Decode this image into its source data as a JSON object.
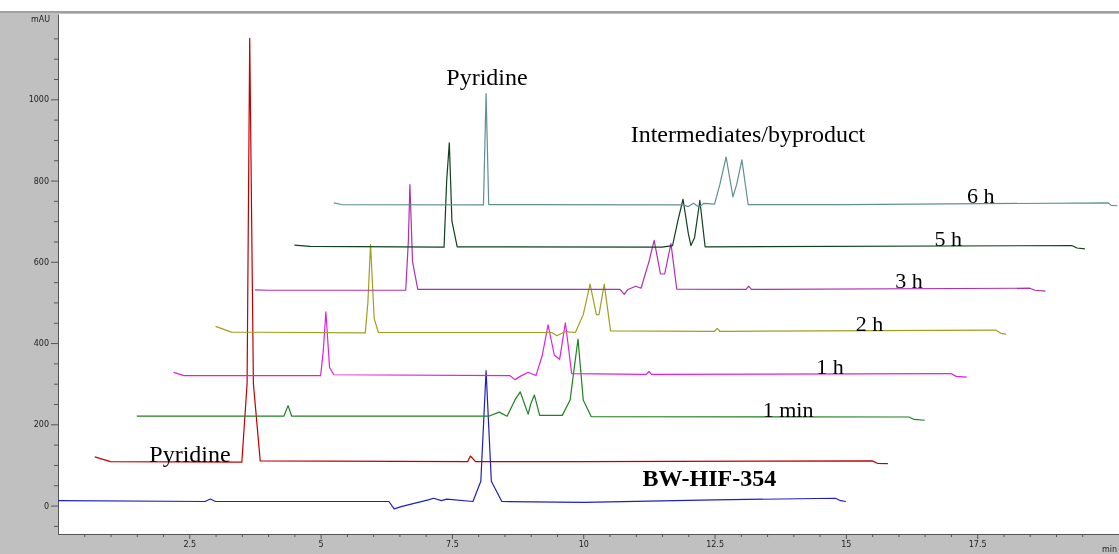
{
  "chart_data": {
    "type": "line",
    "ylabel": "mAU",
    "xlabel": "min",
    "xlim": [
      0,
      20.2
    ],
    "ylim": [
      -70,
      1210
    ],
    "xticks": [
      {
        "value": 0.5,
        "label": null
      },
      {
        "value": 1,
        "label": null
      },
      {
        "value": 1.5,
        "label": null
      },
      {
        "value": 2,
        "label": null
      },
      {
        "value": 2.5,
        "label": "2.5"
      },
      {
        "value": 3,
        "label": null
      },
      {
        "value": 3.5,
        "label": null
      },
      {
        "value": 4,
        "label": null
      },
      {
        "value": 4.5,
        "label": null
      },
      5,
      {
        "value": 5.5,
        "label": null
      },
      {
        "value": 6,
        "label": null
      },
      {
        "value": 6.5,
        "label": null
      },
      {
        "value": 7,
        "label": null
      },
      {
        "value": 7.5,
        "label": "7.5"
      },
      {
        "value": 8,
        "label": null
      },
      {
        "value": 8.5,
        "label": null
      },
      {
        "value": 9,
        "label": null
      },
      {
        "value": 9.5,
        "label": null
      },
      10,
      {
        "value": 10.5,
        "label": null
      },
      {
        "value": 11,
        "label": null
      },
      {
        "value": 11.5,
        "label": null
      },
      {
        "value": 12,
        "label": null
      },
      {
        "value": 12.5,
        "label": "12.5"
      },
      {
        "value": 13,
        "label": null
      },
      {
        "value": 13.5,
        "label": null
      },
      {
        "value": 14,
        "label": null
      },
      {
        "value": 14.5,
        "label": null
      },
      15,
      {
        "value": 15.5,
        "label": null
      },
      {
        "value": 16,
        "label": null
      },
      {
        "value": 16.5,
        "label": null
      },
      {
        "value": 17,
        "label": null
      },
      {
        "value": 17.5,
        "label": "17.5"
      },
      {
        "value": 18,
        "label": null
      },
      {
        "value": 18.5,
        "label": null
      },
      {
        "value": 19,
        "label": null
      },
      {
        "value": 19.5,
        "label": null
      }
    ],
    "yticks": [
      {
        "value": -50,
        "label": null
      },
      0,
      {
        "value": 50,
        "label": null
      },
      {
        "value": 100,
        "label": null
      },
      {
        "value": 150,
        "label": null
      },
      200,
      {
        "value": 250,
        "label": null
      },
      {
        "value": 300,
        "label": null
      },
      {
        "value": 350,
        "label": null
      },
      400,
      {
        "value": 450,
        "label": null
      },
      {
        "value": 500,
        "label": null
      },
      {
        "value": 550,
        "label": null
      },
      600,
      {
        "value": 650,
        "label": null
      },
      {
        "value": 700,
        "label": null
      },
      {
        "value": 750,
        "label": null
      },
      800,
      {
        "value": 850,
        "label": null
      },
      {
        "value": 900,
        "label": null
      },
      {
        "value": 950,
        "label": null
      },
      1000,
      {
        "value": 1050,
        "label": null
      },
      {
        "value": 1100,
        "label": null
      },
      {
        "value": 1150,
        "label": null
      }
    ],
    "grid": false,
    "marker": "none",
    "line_style": "solid",
    "annotations": [
      "Pyridine",
      "Pyridine",
      "Intermediates/byproduct"
    ],
    "series": [
      {
        "name": "BW-HIF-354",
        "color": "#2020c0",
        "x": [
          0,
          2.8,
          2.9,
          3.0,
          6.3,
          6.4,
          6.55,
          7.05,
          7.15,
          7.3,
          7.4,
          7.9,
          8.05,
          8.15,
          8.25,
          8.45,
          10,
          12.5,
          14.8,
          14.9,
          15.0
        ],
        "values": [
          12,
          10,
          16,
          10,
          10,
          -8,
          -2,
          14,
          18,
          12,
          16,
          10,
          60,
          332,
          60,
          10,
          8,
          14,
          18,
          12,
          10
        ]
      },
      {
        "color": "#c00000",
        "x": [
          0.7,
          1.0,
          3.5,
          3.6,
          3.65,
          3.72,
          3.85,
          7.8,
          7.85,
          7.95,
          10,
          15.5,
          15.6,
          15.8
        ],
        "values": [
          120,
          108,
          107,
          300,
          1150,
          300,
          110,
          108,
          122,
          108,
          108,
          110,
          104,
          103
        ]
      },
      {
        "name": "1 min",
        "color": "#208020",
        "x": [
          1.5,
          4.3,
          4.38,
          4.45,
          8.2,
          8.4,
          8.55,
          8.7,
          8.8,
          8.95,
          9.0,
          9.07,
          9.17,
          9.6,
          9.75,
          9.9,
          10.0,
          10.15,
          16.2,
          16.3,
          16.5
        ],
        "values": [
          220,
          220,
          246,
          220,
          220,
          230,
          220,
          260,
          280,
          225,
          250,
          272,
          222,
          222,
          260,
          410,
          260,
          219,
          218,
          212,
          210
        ]
      },
      {
        "name": "1 h",
        "color": "#e020e0",
        "x": [
          2.2,
          2.4,
          5.0,
          5.05,
          5.1,
          5.17,
          5.25,
          8.6,
          8.7,
          8.8,
          8.95,
          9.1,
          9.22,
          9.33,
          9.45,
          9.55,
          9.66,
          9.78,
          11.2,
          11.25,
          11.3,
          17.0,
          17.1,
          17.3
        ],
        "values": [
          328,
          320,
          320,
          380,
          477,
          340,
          322,
          320,
          310,
          318,
          328,
          320,
          370,
          445,
          370,
          360,
          450,
          325,
          323,
          330,
          323,
          325,
          318,
          316
        ]
      },
      {
        "name": "2 h",
        "color": "#a0a020",
        "x": [
          3.0,
          3.3,
          5.85,
          5.9,
          5.95,
          6.02,
          6.1,
          9.4,
          9.5,
          9.65,
          9.85,
          10.0,
          10.13,
          10.25,
          10.3,
          10.4,
          10.52,
          12.5,
          12.55,
          12.6,
          17.85,
          17.95,
          18.05
        ],
        "values": [
          441,
          427,
          425,
          500,
          643,
          460,
          426,
          426,
          418,
          428,
          426,
          470,
          545,
          470,
          470,
          545,
          430,
          429,
          436,
          429,
          432,
          424,
          422
        ]
      },
      {
        "name": "3 h",
        "color": "#b030b0",
        "x": [
          3.75,
          4.0,
          6.62,
          6.67,
          6.7,
          6.75,
          6.85,
          10.7,
          10.78,
          10.85,
          11.0,
          11.1,
          11.25,
          11.35,
          11.47,
          11.55,
          11.67,
          11.78,
          13.1,
          13.15,
          13.2,
          18.5,
          18.6,
          18.8
        ],
        "values": [
          531,
          530,
          530,
          650,
          790,
          600,
          532,
          532,
          520,
          532,
          540,
          535,
          600,
          653,
          570,
          570,
          645,
          533,
          532,
          540,
          532,
          535,
          530,
          528
        ]
      },
      {
        "name": "5 h",
        "color": "#104020",
        "x": [
          4.5,
          4.8,
          7.35,
          7.4,
          7.45,
          7.5,
          7.6,
          11.5,
          11.7,
          11.8,
          11.9,
          12.0,
          12.05,
          12.12,
          12.22,
          12.32,
          19.3,
          19.4,
          19.55
        ],
        "values": [
          641,
          638,
          636,
          800,
          893,
          700,
          637,
          636,
          640,
          700,
          754,
          670,
          640,
          660,
          751,
          637,
          640,
          634,
          632
        ]
      },
      {
        "name": "6 h",
        "color": "#609090",
        "x": [
          5.25,
          5.4,
          8.1,
          8.15,
          8.2,
          11.9,
          12.0,
          12.1,
          12.2,
          12.3,
          12.5,
          12.6,
          12.72,
          12.85,
          12.92,
          13.02,
          13.14,
          15,
          20.0,
          20.05,
          20.17
        ],
        "values": [
          745,
          741,
          740,
          1014,
          741,
          740,
          736,
          744,
          735,
          744,
          742,
          790,
          858,
          760,
          790,
          851,
          741,
          741,
          745,
          739,
          738
        ]
      }
    ]
  }
}
